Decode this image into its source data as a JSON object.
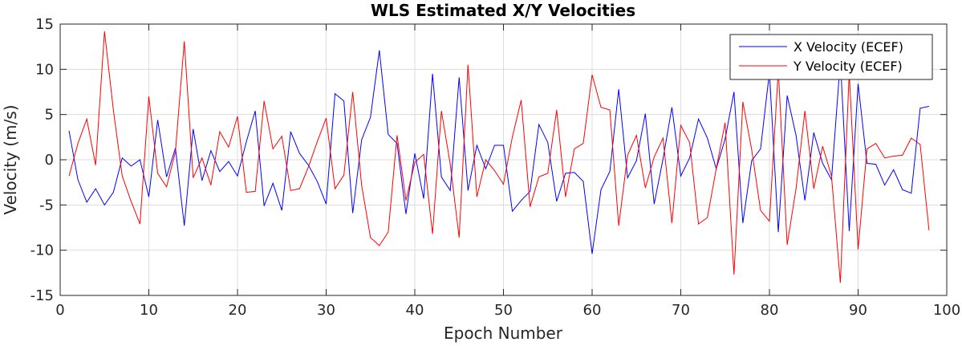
{
  "chart_data": {
    "type": "line",
    "title": "WLS Estimated X/Y Velocities",
    "xlabel": "Epoch Number",
    "ylabel": "Velocity (m/s)",
    "xlim": [
      0,
      100
    ],
    "ylim": [
      -15,
      15
    ],
    "xticks": [
      0,
      10,
      20,
      30,
      40,
      50,
      60,
      70,
      80,
      90,
      100
    ],
    "yticks": [
      -15,
      -10,
      -5,
      0,
      5,
      10,
      15
    ],
    "grid": true,
    "legend_position": "top-right",
    "x": [
      1,
      2,
      3,
      4,
      5,
      6,
      7,
      8,
      9,
      10,
      11,
      12,
      13,
      14,
      15,
      16,
      17,
      18,
      19,
      20,
      21,
      22,
      23,
      24,
      25,
      26,
      27,
      28,
      29,
      30,
      31,
      32,
      33,
      34,
      35,
      36,
      37,
      38,
      39,
      40,
      41,
      42,
      43,
      44,
      45,
      46,
      47,
      48,
      49,
      50,
      51,
      52,
      53,
      54,
      55,
      56,
      57,
      58,
      59,
      60,
      61,
      62,
      63,
      64,
      65,
      66,
      67,
      68,
      69,
      70,
      71,
      72,
      73,
      74,
      75,
      76,
      77,
      78,
      79,
      80,
      81,
      82,
      83,
      84,
      85,
      86,
      87,
      88,
      89,
      90,
      91,
      92,
      93,
      94,
      95,
      96,
      97,
      98
    ],
    "series": [
      {
        "name": "X Velocity (ECEF)",
        "color": "#0000ff",
        "values": [
          3.2,
          -2.2,
          -4.7,
          -3.2,
          -5.0,
          -3.6,
          0.2,
          -0.7,
          0.0,
          -4.1,
          4.4,
          -1.9,
          1.3,
          -7.3,
          3.4,
          -2.3,
          1.0,
          -1.3,
          -0.2,
          -1.8,
          2.0,
          5.4,
          -5.1,
          -2.6,
          -5.6,
          3.1,
          0.7,
          -0.6,
          -2.4,
          -4.9,
          7.3,
          6.5,
          -5.9,
          2.2,
          4.7,
          12.1,
          2.8,
          1.8,
          -6.0,
          0.7,
          -4.3,
          9.5,
          -1.9,
          -3.4,
          9.1,
          -3.4,
          1.6,
          -1.0,
          1.6,
          1.6,
          -5.7,
          -4.5,
          -3.5,
          3.9,
          1.9,
          -4.6,
          -1.5,
          -1.4,
          -2.4,
          -10.4,
          -3.3,
          -1.3,
          7.8,
          -2.0,
          -0.1,
          5.1,
          -4.9,
          0.1,
          5.8,
          -1.8,
          0.2,
          4.5,
          2.4,
          -1.0,
          2.3,
          7.5,
          -7.0,
          -0.1,
          1.2,
          9.7,
          -8.0,
          7.1,
          2.7,
          -4.5,
          3.0,
          -0.4,
          -2.2,
          11.0,
          -7.9,
          8.4,
          -0.4,
          -0.5,
          -2.8,
          -1.1,
          -3.3,
          -3.7,
          5.7,
          5.9
        ]
      },
      {
        "name": "Y Velocity (ECEF)",
        "color": "#ff0000",
        "values": [
          -1.8,
          1.8,
          4.5,
          -0.6,
          14.2,
          5.5,
          -1.8,
          -4.6,
          -7.1,
          7.0,
          -1.5,
          -3.0,
          0.9,
          13.1,
          -2.0,
          0.2,
          -2.8,
          3.1,
          1.4,
          4.8,
          -3.6,
          -3.5,
          6.5,
          1.2,
          2.6,
          -3.4,
          -3.2,
          -0.8,
          2.0,
          4.6,
          -3.2,
          -1.7,
          7.5,
          -2.8,
          -8.6,
          -9.5,
          -8.0,
          2.7,
          -4.5,
          -0.3,
          0.6,
          -8.2,
          5.4,
          -0.5,
          -8.6,
          10.5,
          -4.1,
          0.0,
          -1.2,
          -2.7,
          2.5,
          6.6,
          -5.2,
          -1.9,
          -1.5,
          5.5,
          -4.1,
          1.2,
          1.8,
          9.4,
          5.8,
          5.5,
          -7.3,
          0.5,
          2.7,
          -3.1,
          0.3,
          2.4,
          -7.0,
          3.8,
          1.9,
          -7.1,
          -6.4,
          -1.0,
          4.1,
          -12.7,
          6.4,
          1.1,
          -5.6,
          -6.8,
          10.0,
          -9.4,
          -3.2,
          5.4,
          -3.2,
          1.5,
          -1.8,
          -13.6,
          9.6,
          -9.9,
          1.2,
          1.8,
          0.2,
          0.4,
          0.5,
          2.4,
          1.7,
          -7.8
        ]
      }
    ]
  }
}
